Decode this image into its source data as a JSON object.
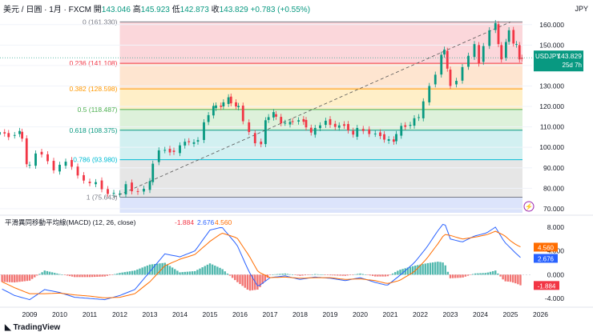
{
  "header": {
    "symbol_line": "美元 / 日圓 · 1月 · FXCM",
    "open_label": "開",
    "open": "143.046",
    "high_label": "高",
    "high": "145.923",
    "low_label": "低",
    "low": "142.873",
    "close_label": "收",
    "close": "143.829",
    "change": "+0.783 (+0.55%)"
  },
  "currency": "JPY",
  "price_tag": {
    "symbol": "USDJPY",
    "value": "143.829",
    "countdown": "25d 7h"
  },
  "macd_header": {
    "title": "平滑異同移動平均線(MACD) (12, 26, close)",
    "hist": "-1.884",
    "macd": "2.676",
    "signal": "4.560"
  },
  "macd_tags": {
    "signal": "4.560",
    "macd": "2.676",
    "hist": "-1.884"
  },
  "branding": "TradingView",
  "colors": {
    "up": "#089981",
    "down": "#f23645",
    "macd_line": "#2962ff",
    "signal_line": "#ff6d00"
  },
  "chart_data": [
    {
      "type": "candlestick",
      "title": "USDJPY monthly with Fibonacci retracement",
      "x_ticks": [
        "2009",
        "2010",
        "2011",
        "2012",
        "2013",
        "2014",
        "2015",
        "2016",
        "2017",
        "2018",
        "2019",
        "2020",
        "2021",
        "2022",
        "2023",
        "2024",
        "2025",
        "2026"
      ],
      "ylim": [
        68,
        165
      ],
      "y_ticks": [
        "160.000",
        "150.000",
        "140.000",
        "130.000",
        "120.000",
        "110.000",
        "100.000",
        "90.000",
        "80.000",
        "70.000"
      ],
      "fib_levels": [
        {
          "label": "0 (161.330)",
          "value": 161.33,
          "line": "#787b86",
          "fill": "#fbd3d7"
        },
        {
          "label": "0.236 (141.108)",
          "value": 141.108,
          "line": "#f23645",
          "fill": "#fee2cb"
        },
        {
          "label": "0.382 (128.598)",
          "value": 128.598,
          "line": "#ff9800",
          "fill": "#ffedc2"
        },
        {
          "label": "0.5 (118.487)",
          "value": 118.487,
          "line": "#4caf50",
          "fill": "#d9f0d6"
        },
        {
          "label": "0.618 (108.375)",
          "value": 108.375,
          "line": "#089981",
          "fill": "#cdeef0"
        },
        {
          "label": "0.786 (93.980)",
          "value": 93.98,
          "line": "#00bcd4",
          "fill": "#e3e3e3"
        },
        {
          "label": "1 (75.643)",
          "value": 75.643,
          "line": "#787b86",
          "fill": "#dce4fb"
        }
      ],
      "trend_line": {
        "from": [
          2011.8,
          75.6
        ],
        "to": [
          2025.0,
          161.3
        ]
      },
      "series": [
        {
          "name": "USDJPY close",
          "points": [
            [
              2008.0,
              107
            ],
            [
              2008.3,
              105
            ],
            [
              2008.5,
              108
            ],
            [
              2008.75,
              104
            ],
            [
              2008.9,
              92
            ],
            [
              2009.0,
              91
            ],
            [
              2009.2,
              97
            ],
            [
              2009.4,
              97
            ],
            [
              2009.6,
              93
            ],
            [
              2009.8,
              89
            ],
            [
              2010.0,
              91
            ],
            [
              2010.2,
              93
            ],
            [
              2010.4,
              91
            ],
            [
              2010.6,
              86
            ],
            [
              2010.8,
              84
            ],
            [
              2011.0,
              82
            ],
            [
              2011.2,
              83
            ],
            [
              2011.4,
              80
            ],
            [
              2011.6,
              77
            ],
            [
              2011.8,
              78
            ],
            [
              2012.0,
              77
            ],
            [
              2012.2,
              82
            ],
            [
              2012.4,
              79
            ],
            [
              2012.6,
              78
            ],
            [
              2012.8,
              80
            ],
            [
              2013.0,
              83
            ],
            [
              2013.1,
              92
            ],
            [
              2013.3,
              99
            ],
            [
              2013.5,
              98
            ],
            [
              2013.8,
              98
            ],
            [
              2014.0,
              103
            ],
            [
              2014.3,
              102
            ],
            [
              2014.6,
              104
            ],
            [
              2014.8,
              112
            ],
            [
              2014.95,
              120
            ],
            [
              2015.2,
              120
            ],
            [
              2015.45,
              124
            ],
            [
              2015.7,
              120
            ],
            [
              2015.95,
              120
            ],
            [
              2016.1,
              113
            ],
            [
              2016.3,
              107
            ],
            [
              2016.5,
              102
            ],
            [
              2016.7,
              102
            ],
            [
              2016.85,
              113
            ],
            [
              2016.95,
              117
            ],
            [
              2017.2,
              112
            ],
            [
              2017.5,
              112
            ],
            [
              2017.75,
              113
            ],
            [
              2017.95,
              113
            ],
            [
              2018.2,
              107
            ],
            [
              2018.5,
              111
            ],
            [
              2018.85,
              113
            ],
            [
              2019.0,
              110
            ],
            [
              2019.3,
              111
            ],
            [
              2019.6,
              106
            ],
            [
              2019.9,
              109
            ],
            [
              2020.1,
              108
            ],
            [
              2020.3,
              107
            ],
            [
              2020.5,
              106
            ],
            [
              2020.8,
              104
            ],
            [
              2020.95,
              103
            ],
            [
              2021.2,
              110
            ],
            [
              2021.5,
              111
            ],
            [
              2021.8,
              114
            ],
            [
              2021.95,
              115
            ],
            [
              2022.1,
              122
            ],
            [
              2022.3,
              130
            ],
            [
              2022.5,
              136
            ],
            [
              2022.7,
              145
            ],
            [
              2022.8,
              148
            ],
            [
              2022.9,
              138
            ],
            [
              2023.0,
              130
            ],
            [
              2023.2,
              133
            ],
            [
              2023.4,
              139
            ],
            [
              2023.6,
              145
            ],
            [
              2023.8,
              150
            ],
            [
              2023.95,
              141
            ],
            [
              2024.1,
              150
            ],
            [
              2024.3,
              157
            ],
            [
              2024.5,
              161
            ],
            [
              2024.6,
              150
            ],
            [
              2024.7,
              143
            ],
            [
              2024.85,
              152
            ],
            [
              2024.95,
              157
            ],
            [
              2025.1,
              151
            ],
            [
              2025.2,
              150
            ],
            [
              2025.3,
              143
            ],
            [
              2025.38,
              143.8
            ]
          ]
        }
      ]
    },
    {
      "type": "macd",
      "ylim": [
        -5.2,
        9.6
      ],
      "y_ticks": [
        "8.000",
        "4.000",
        "0.000",
        "-4.000"
      ],
      "series": [
        {
          "name": "MACD",
          "color": "#2962ff",
          "points": [
            [
              2008.0,
              -2.2
            ],
            [
              2008.5,
              -3.5
            ],
            [
              2009.0,
              -4.2
            ],
            [
              2009.5,
              -2.5
            ],
            [
              2010.0,
              -3.0
            ],
            [
              2010.5,
              -3.8
            ],
            [
              2011.0,
              -4.0
            ],
            [
              2011.5,
              -4.2
            ],
            [
              2012.0,
              -3.5
            ],
            [
              2012.5,
              -2.5
            ],
            [
              2013.0,
              0.5
            ],
            [
              2013.5,
              3.5
            ],
            [
              2014.0,
              3.0
            ],
            [
              2014.5,
              4.0
            ],
            [
              2015.0,
              7.5
            ],
            [
              2015.4,
              8.0
            ],
            [
              2015.9,
              5.0
            ],
            [
              2016.3,
              0.5
            ],
            [
              2016.6,
              -2.0
            ],
            [
              2017.0,
              -0.5
            ],
            [
              2017.5,
              -0.2
            ],
            [
              2018.0,
              -0.8
            ],
            [
              2018.5,
              -0.4
            ],
            [
              2019.0,
              -0.6
            ],
            [
              2019.5,
              -1.0
            ],
            [
              2020.0,
              -0.5
            ],
            [
              2020.5,
              -1.3
            ],
            [
              2020.9,
              -1.8
            ],
            [
              2021.3,
              -0.2
            ],
            [
              2021.8,
              2.0
            ],
            [
              2022.2,
              4.5
            ],
            [
              2022.6,
              7.5
            ],
            [
              2022.8,
              8.8
            ],
            [
              2023.0,
              6.0
            ],
            [
              2023.4,
              5.5
            ],
            [
              2023.8,
              6.5
            ],
            [
              2024.2,
              7.0
            ],
            [
              2024.5,
              8.0
            ],
            [
              2024.8,
              5.5
            ],
            [
              2025.0,
              4.5
            ],
            [
              2025.2,
              3.5
            ],
            [
              2025.38,
              2.676
            ]
          ]
        },
        {
          "name": "Signal",
          "color": "#ff6d00",
          "points": [
            [
              2008.0,
              -1.0
            ],
            [
              2008.5,
              -2.2
            ],
            [
              2009.0,
              -3.2
            ],
            [
              2009.5,
              -3.2
            ],
            [
              2010.0,
              -3.1
            ],
            [
              2010.5,
              -3.4
            ],
            [
              2011.0,
              -3.6
            ],
            [
              2011.5,
              -3.9
            ],
            [
              2012.0,
              -3.8
            ],
            [
              2012.5,
              -3.2
            ],
            [
              2013.0,
              -1.2
            ],
            [
              2013.5,
              1.5
            ],
            [
              2014.0,
              2.6
            ],
            [
              2014.5,
              3.4
            ],
            [
              2015.0,
              5.6
            ],
            [
              2015.4,
              7.0
            ],
            [
              2015.9,
              6.2
            ],
            [
              2016.3,
              3.2
            ],
            [
              2016.6,
              0.5
            ],
            [
              2017.0,
              -0.5
            ],
            [
              2017.5,
              -0.4
            ],
            [
              2018.0,
              -0.6
            ],
            [
              2018.5,
              -0.5
            ],
            [
              2019.0,
              -0.5
            ],
            [
              2019.5,
              -0.8
            ],
            [
              2020.0,
              -0.7
            ],
            [
              2020.5,
              -1.0
            ],
            [
              2020.9,
              -1.5
            ],
            [
              2021.3,
              -1.0
            ],
            [
              2021.8,
              0.5
            ],
            [
              2022.2,
              2.6
            ],
            [
              2022.6,
              5.3
            ],
            [
              2022.8,
              6.8
            ],
            [
              2023.0,
              6.6
            ],
            [
              2023.4,
              6.0
            ],
            [
              2023.8,
              6.3
            ],
            [
              2024.2,
              6.7
            ],
            [
              2024.5,
              7.3
            ],
            [
              2024.8,
              6.6
            ],
            [
              2025.0,
              5.7
            ],
            [
              2025.2,
              5.0
            ],
            [
              2025.38,
              4.56
            ]
          ]
        }
      ]
    }
  ]
}
